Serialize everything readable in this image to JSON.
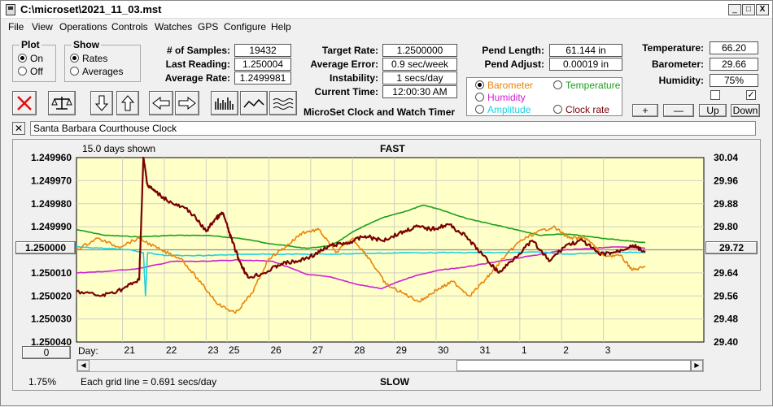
{
  "window": {
    "title": "C:\\microset\\2021_11_03.mst",
    "minimize": "_",
    "maximize": "□",
    "close": "X"
  },
  "menu": [
    "File",
    "View",
    "Operations",
    "Controls",
    "Watches",
    "GPS",
    "Configure",
    "Help"
  ],
  "plot_group": {
    "label": "Plot",
    "on": "On",
    "off": "Off",
    "selected": "On"
  },
  "show_group": {
    "label": "Show",
    "rates": "Rates",
    "averages": "Averages",
    "selected": "Rates"
  },
  "stats": {
    "samples_label": "# of Samples:",
    "samples": "19432",
    "last_label": "Last Reading:",
    "last": "1.250004",
    "avg_label": "Average Rate:",
    "avg": "1.2499981"
  },
  "timing": {
    "target_label": "Target Rate:",
    "target": "1.2500000",
    "error_label": "Average Error:",
    "error": "0.9 sec/week",
    "instability_label": "Instability:",
    "instability": "1 secs/day",
    "time_label": "Current Time:",
    "time": "12:00:30 AM",
    "footer": "MicroSet Clock and Watch Timer"
  },
  "pendulum": {
    "length_label": "Pend Length:",
    "length": "61.144 in",
    "adjust_label": "Pend Adjust:",
    "adjust": "0.00019 in"
  },
  "environment": {
    "temp_label": "Temperature:",
    "temp": "66.20",
    "baro_label": "Barometer:",
    "baro": "29.66",
    "hum_label": "Humidity:",
    "hum": "75%",
    "check1": "",
    "check2": "✓"
  },
  "legend": {
    "barometer": "Barometer",
    "temperature": "Temperature",
    "humidity": "Humidity",
    "amplitude": "Amplitude",
    "clock_rate": "Clock rate",
    "colors": {
      "barometer": "#e8840a",
      "temperature": "#1aa01a",
      "humidity": "#d020d0",
      "amplitude": "#20d0e0",
      "clock_rate": "#7a0000"
    }
  },
  "adjust_buttons": {
    "plus": "+",
    "minus": "—",
    "up": "Up",
    "down": "Down"
  },
  "clock_name": "Santa Barbara Courthouse Clock",
  "chart_labels": {
    "days_shown": "15.0 days shown",
    "fast": "FAST",
    "slow": "SLOW",
    "grid_note": "Each grid line = 0.691 secs/day",
    "percent": "1.75%",
    "day_label": "Day:",
    "left_button": "1.250000",
    "right_button": "29.72",
    "bottom_button": "0"
  },
  "chart_data": {
    "type": "line",
    "x_unit": "day",
    "xlim": [
      19.9,
      34.9
    ],
    "day_ticks": [
      {
        "label": "21",
        "x": 21.0
      },
      {
        "label": "22",
        "x": 22.0
      },
      {
        "label": "23",
        "x": 23.0
      },
      {
        "label": "25",
        "x": 23.5
      },
      {
        "label": "26",
        "x": 24.5
      },
      {
        "label": "27",
        "x": 25.5
      },
      {
        "label": "28",
        "x": 26.5
      },
      {
        "label": "29",
        "x": 27.5
      },
      {
        "label": "30",
        "x": 28.5
      },
      {
        "label": "31",
        "x": 29.5
      },
      {
        "label": "1",
        "x": 30.5
      },
      {
        "label": "2",
        "x": 31.5
      },
      {
        "label": "3",
        "x": 32.5
      }
    ],
    "left_axis": {
      "ylim": [
        1.24996,
        1.25004
      ],
      "inverted": true,
      "ticks": [
        "1.249960",
        "1.249970",
        "1.249980",
        "1.249990",
        "1.250000",
        "1.250010",
        "1.250020",
        "1.250030",
        "1.250040"
      ]
    },
    "right_axis": {
      "ylim": [
        29.4,
        30.04
      ],
      "ticks": [
        "30.04",
        "29.96",
        "29.88",
        "29.80",
        "29.72",
        "29.64",
        "29.56",
        "29.48",
        "29.40"
      ]
    },
    "grid": true,
    "series": [
      {
        "name": "Temperature",
        "color": "#1aa01a",
        "axis": "right",
        "x": [
          19.9,
          20.6,
          21.4,
          22.2,
          23.0,
          23.8,
          24.6,
          25.4,
          26.0,
          26.6,
          27.2,
          27.8,
          28.2,
          28.6,
          29.2,
          29.8,
          30.4,
          31.0,
          31.6,
          32.2,
          32.8,
          33.5
        ],
        "y": [
          29.79,
          29.77,
          29.765,
          29.77,
          29.77,
          29.76,
          29.74,
          29.725,
          29.735,
          29.79,
          29.83,
          29.855,
          29.875,
          29.86,
          29.83,
          29.81,
          29.79,
          29.77,
          29.775,
          29.765,
          29.755,
          29.745
        ]
      },
      {
        "name": "Humidity",
        "color": "#d020d0",
        "axis": "right",
        "x": [
          19.9,
          20.6,
          21.4,
          22.2,
          23.0,
          23.8,
          24.6,
          25.4,
          26.0,
          26.6,
          27.2,
          27.6,
          28.0,
          28.6,
          29.2,
          29.8,
          30.4,
          31.0,
          31.6,
          32.2,
          32.8,
          33.5
        ],
        "y": [
          29.64,
          29.645,
          29.655,
          29.68,
          29.68,
          29.685,
          29.68,
          29.635,
          29.625,
          29.6,
          29.585,
          29.61,
          29.63,
          29.65,
          29.66,
          29.675,
          29.69,
          29.705,
          29.72,
          29.725,
          29.73,
          29.725
        ]
      },
      {
        "name": "Amplitude",
        "color": "#20d0e0",
        "axis": "right",
        "x": [
          19.9,
          20.6,
          21.2,
          21.5,
          21.55,
          21.6,
          22.0,
          23.0,
          24.0,
          25.0,
          26.0,
          27.0,
          28.0,
          29.0,
          30.0,
          31.0,
          31.6,
          32.2,
          32.8,
          33.5
        ],
        "y": [
          29.73,
          29.725,
          29.72,
          29.71,
          29.56,
          29.71,
          29.7,
          29.7,
          29.705,
          29.705,
          29.705,
          29.708,
          29.71,
          29.71,
          29.71,
          29.712,
          29.705,
          29.708,
          29.712,
          29.71
        ]
      },
      {
        "name": "Barometer",
        "color": "#e8840a",
        "axis": "right",
        "x": [
          19.9,
          20.4,
          20.9,
          21.4,
          21.9,
          22.4,
          22.9,
          23.3,
          23.7,
          24.1,
          24.5,
          24.9,
          25.3,
          25.7,
          26.1,
          26.5,
          26.9,
          27.3,
          27.7,
          28.1,
          28.5,
          28.9,
          29.3,
          29.7,
          30.1,
          30.5,
          30.9,
          31.3,
          31.7,
          32.1,
          32.5,
          32.9,
          33.2,
          33.5
        ],
        "y": [
          29.72,
          29.76,
          29.73,
          29.76,
          29.72,
          29.69,
          29.6,
          29.53,
          29.5,
          29.57,
          29.69,
          29.73,
          29.78,
          29.79,
          29.71,
          29.76,
          29.69,
          29.6,
          29.57,
          29.54,
          29.58,
          29.61,
          29.56,
          29.62,
          29.69,
          29.75,
          29.78,
          29.8,
          29.76,
          29.76,
          29.7,
          29.7,
          29.65,
          29.66
        ]
      },
      {
        "name": "Clock rate",
        "color": "#7a0000",
        "axis": "left",
        "x": [
          19.9,
          20.5,
          21.0,
          21.4,
          21.5,
          21.6,
          21.8,
          22.2,
          22.6,
          23.0,
          23.2,
          23.4,
          23.6,
          23.8,
          24.0,
          24.4,
          24.8,
          25.2,
          25.6,
          26.0,
          26.4,
          26.8,
          27.2,
          27.6,
          28.0,
          28.4,
          28.8,
          29.2,
          29.6,
          30.0,
          30.4,
          30.8,
          31.2,
          31.6,
          32.0,
          32.4,
          32.8,
          33.2,
          33.5
        ],
        "y": [
          1.250018,
          1.25002,
          1.250017,
          1.250013,
          1.24996,
          1.249972,
          1.249975,
          1.24998,
          1.249983,
          1.249992,
          1.249987,
          1.249984,
          1.249995,
          1.250005,
          1.250012,
          1.25001,
          1.250006,
          1.250005,
          1.250002,
          1.249998,
          1.249997,
          1.249994,
          1.249996,
          1.249993,
          1.24999,
          1.249991,
          1.249989,
          1.249994,
          1.250002,
          1.25001,
          1.250003,
          1.249996,
          1.250005,
          1.249998,
          1.249996,
          1.250002,
          1.250001,
          1.249998,
          1.250001
        ]
      }
    ]
  }
}
